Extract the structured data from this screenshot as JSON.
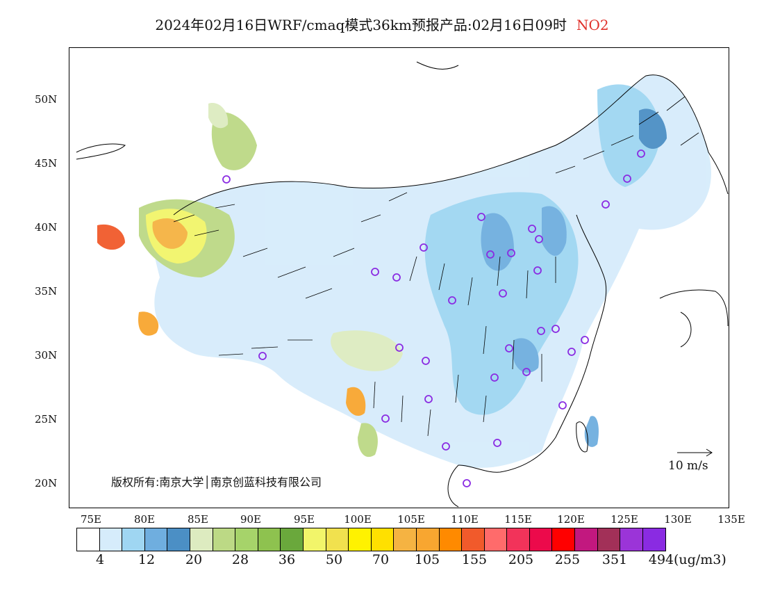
{
  "title": {
    "main": "2024年02月16日WRF/cmaq模式36km预报产品:02月16日09时",
    "pollutant": "NO2"
  },
  "map": {
    "lat_labels": [
      "50N",
      "45N",
      "40N",
      "35N",
      "30N",
      "25N",
      "20N"
    ],
    "lon_labels": [
      "75E",
      "80E",
      "85E",
      "90E",
      "95E",
      "100E",
      "105E",
      "110E",
      "115E",
      "120E",
      "125E",
      "130E",
      "135E"
    ],
    "copyright": "版权所有:南京大学│南京创蓝科技有限公司",
    "wind_reference": "10 m/s",
    "colors": {
      "frame": "#000000",
      "coast": "#000000",
      "vector": "#000000",
      "station": "#8a2be2"
    }
  },
  "legend": {
    "colors": [
      "#ffffff",
      "#d6ecfb",
      "#9fd6f2",
      "#6faedf",
      "#4b8fc5",
      "#ddebc0",
      "#bcd985",
      "#a6d36a",
      "#8ec24f",
      "#6aa83c",
      "#f2f56a",
      "#f1e14e",
      "#fff200",
      "#ffe000",
      "#f5b342",
      "#f8a630",
      "#ff8a00",
      "#f15a2b",
      "#ff6b6b",
      "#f2335a",
      "#ec0a4b",
      "#ff0000",
      "#c2187f",
      "#a23058",
      "#9b34d8",
      "#8a2be2"
    ],
    "tick_labels": [
      "4",
      "12",
      "20",
      "28",
      "36",
      "50",
      "70",
      "105",
      "155",
      "205",
      "255",
      "351",
      "494"
    ],
    "unit": "(ug/m3)"
  }
}
